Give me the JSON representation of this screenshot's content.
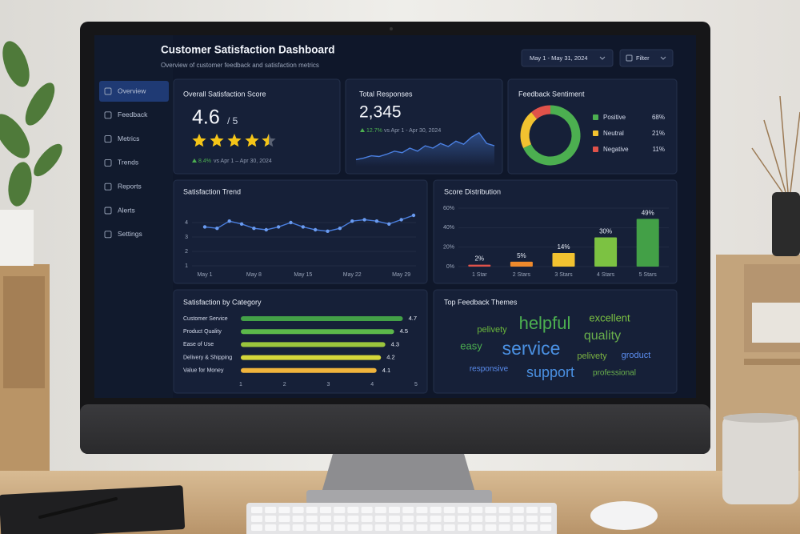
{
  "header": {
    "title": "Customer Satisfaction Dashboard",
    "subtitle": "Overview of customer feedback and satisfaction metrics",
    "date_range": "May 1 - May 31, 2024",
    "filter": "Filter"
  },
  "nav": {
    "items": [
      "Overview",
      "Feedback",
      "Metrics",
      "Trends",
      "Reports",
      "Alerts",
      "Settings"
    ]
  },
  "score_card": {
    "title": "Overall Satisfaction Score",
    "value": 4.6,
    "scale": "/ 5",
    "change": "8.4%",
    "comparison": "vs Apr 1 – Apr 30, 2024"
  },
  "responses_card": {
    "title": "Total Responses",
    "value": "2,345",
    "change": "12.7%",
    "comparison": "vs Apr 1 - Apr 30, 2024"
  },
  "chart_data": [
    {
      "type": "area",
      "values": [
        9,
        11,
        14,
        13,
        16,
        20,
        18,
        24,
        20,
        27,
        24,
        30,
        26,
        33,
        29,
        38,
        44,
        30,
        27
      ],
      "ylim": [
        0,
        50
      ],
      "color": "#4a7fe0"
    },
    {
      "type": "pie",
      "title": "Feedback Sentiment",
      "categories": [
        "Positive",
        "Neutral",
        "Negative"
      ],
      "values": [
        68,
        21,
        11
      ],
      "value_labels": [
        "68%",
        "21%",
        "11%"
      ],
      "colors": [
        "#4caf50",
        "#f2c230",
        "#e0524a"
      ]
    },
    {
      "type": "line",
      "title": "Satisfaction Trend",
      "categories": [
        "May 1",
        null,
        null,
        null,
        "May 8",
        null,
        null,
        null,
        "May 15",
        null,
        null,
        null,
        "May 22",
        null,
        null,
        null,
        "May 29",
        null
      ],
      "values": [
        3.7,
        3.6,
        4.1,
        3.9,
        3.6,
        3.5,
        3.7,
        4.0,
        3.7,
        3.5,
        3.4,
        3.6,
        4.1,
        4.2,
        4.1,
        3.9,
        4.2,
        4.5
      ],
      "ylim": [
        1,
        5
      ],
      "yticks": [
        1,
        2,
        3,
        4
      ],
      "grid": true,
      "color": "#4a7fe0"
    },
    {
      "type": "bar",
      "title": "Score Distribution",
      "categories": [
        "1 Star",
        "2 Stars",
        "3 Stars",
        "4 Stars",
        "5 Stars"
      ],
      "values": [
        2,
        5,
        14,
        30,
        49
      ],
      "value_labels": [
        "2%",
        "5%",
        "14%",
        "30%",
        "49%"
      ],
      "colors": [
        "#e0524a",
        "#ef8a2c",
        "#f2c230",
        "#7cc242",
        "#43a047"
      ],
      "ylim": [
        0,
        60
      ],
      "yticks": [
        {
          "value": 0,
          "label": "0%"
        },
        {
          "value": 20,
          "label": "20%"
        },
        {
          "value": 40,
          "label": "40%"
        },
        {
          "value": 60,
          "label": "60%"
        }
      ],
      "grid": true
    },
    {
      "type": "hbar",
      "title": "Satisfaction by Category",
      "categories": [
        "Customer Service",
        "Product Quality",
        "Ease of Use",
        "Delivery & Shipping",
        "Value for Money"
      ],
      "values": [
        4.7,
        4.5,
        4.3,
        4.2,
        4.1
      ],
      "colors": [
        "#43a047",
        "#5cb84a",
        "#9bc53d",
        "#d4d63a",
        "#f0b43c"
      ],
      "xlim": [
        1,
        5
      ],
      "xticks": [
        1,
        2,
        3,
        4,
        5
      ]
    }
  ],
  "themes": {
    "title": "Top Feedback Themes",
    "words": [
      "pelivety",
      "helpful",
      "excellent",
      "easy",
      "service",
      "quality",
      "pelivety",
      "groduct",
      "responsive",
      "support",
      "professional"
    ]
  }
}
